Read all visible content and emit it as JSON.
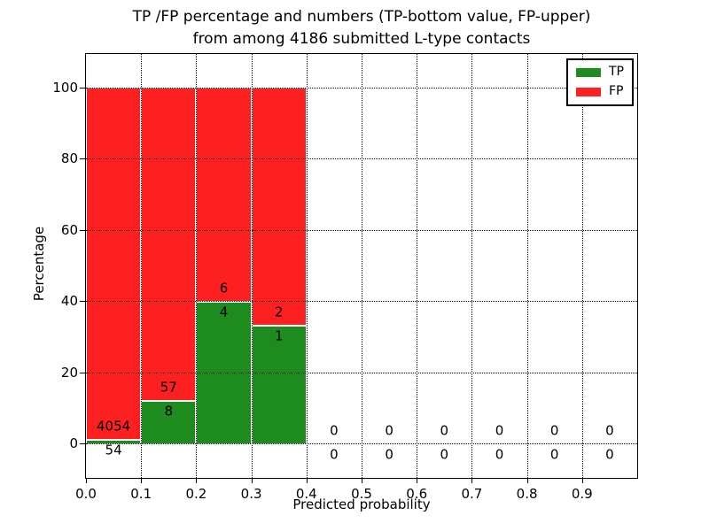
{
  "figure": {
    "title_lines": [
      "TP /FP percentage and numbers (TP-bottom value, FP-upper)",
      "from among 4186 submitted L-type contacts"
    ]
  },
  "chart_data": {
    "type": "bar",
    "stacked": true,
    "title": "TP /FP percentage and numbers (TP-bottom value, FP-upper)\nfrom among 4186 submitted L-type contacts",
    "xlabel": "Predicted probability",
    "ylabel": "Percentage",
    "x_tick_labels": [
      "0.0",
      "0.1",
      "0.2",
      "0.3",
      "0.4",
      "0.5",
      "0.6",
      "0.7",
      "0.8",
      "0.9"
    ],
    "y_tick_values": [
      0,
      20,
      40,
      60,
      80,
      100
    ],
    "xlim": [
      0.0,
      1.0
    ],
    "ylim": [
      -10,
      110
    ],
    "grid": "dotted",
    "legend": {
      "position": "upper right",
      "entries": [
        {
          "label": "TP",
          "color": "#1e8b1e"
        },
        {
          "label": "FP",
          "color": "#fd2020"
        }
      ]
    },
    "colors": {
      "tp": "#1e8b1e",
      "fp": "#fd2020",
      "bar_edge": "#ffffff",
      "grid": "#000000"
    },
    "total_contacts": 4186,
    "bins": [
      {
        "x_range": [
          0.0,
          0.1
        ],
        "tp_count": 54,
        "fp_count": 4054,
        "tp_pct": 1.31,
        "fp_pct": 98.69
      },
      {
        "x_range": [
          0.1,
          0.2
        ],
        "tp_count": 8,
        "fp_count": 57,
        "tp_pct": 12.31,
        "fp_pct": 87.69
      },
      {
        "x_range": [
          0.2,
          0.3
        ],
        "tp_count": 4,
        "fp_count": 6,
        "tp_pct": 40.0,
        "fp_pct": 60.0
      },
      {
        "x_range": [
          0.3,
          0.4
        ],
        "tp_count": 1,
        "fp_count": 2,
        "tp_pct": 33.33,
        "fp_pct": 66.67
      },
      {
        "x_range": [
          0.4,
          0.5
        ],
        "tp_count": 0,
        "fp_count": 0,
        "tp_pct": 0,
        "fp_pct": 0
      },
      {
        "x_range": [
          0.5,
          0.6
        ],
        "tp_count": 0,
        "fp_count": 0,
        "tp_pct": 0,
        "fp_pct": 0
      },
      {
        "x_range": [
          0.6,
          0.7
        ],
        "tp_count": 0,
        "fp_count": 0,
        "tp_pct": 0,
        "fp_pct": 0
      },
      {
        "x_range": [
          0.7,
          0.8
        ],
        "tp_count": 0,
        "fp_count": 0,
        "tp_pct": 0,
        "fp_pct": 0
      },
      {
        "x_range": [
          0.8,
          0.9
        ],
        "tp_count": 0,
        "fp_count": 0,
        "tp_pct": 0,
        "fp_pct": 0
      },
      {
        "x_range": [
          0.9,
          1.0
        ],
        "tp_count": 0,
        "fp_count": 0,
        "tp_pct": 0,
        "fp_pct": 0
      }
    ]
  }
}
